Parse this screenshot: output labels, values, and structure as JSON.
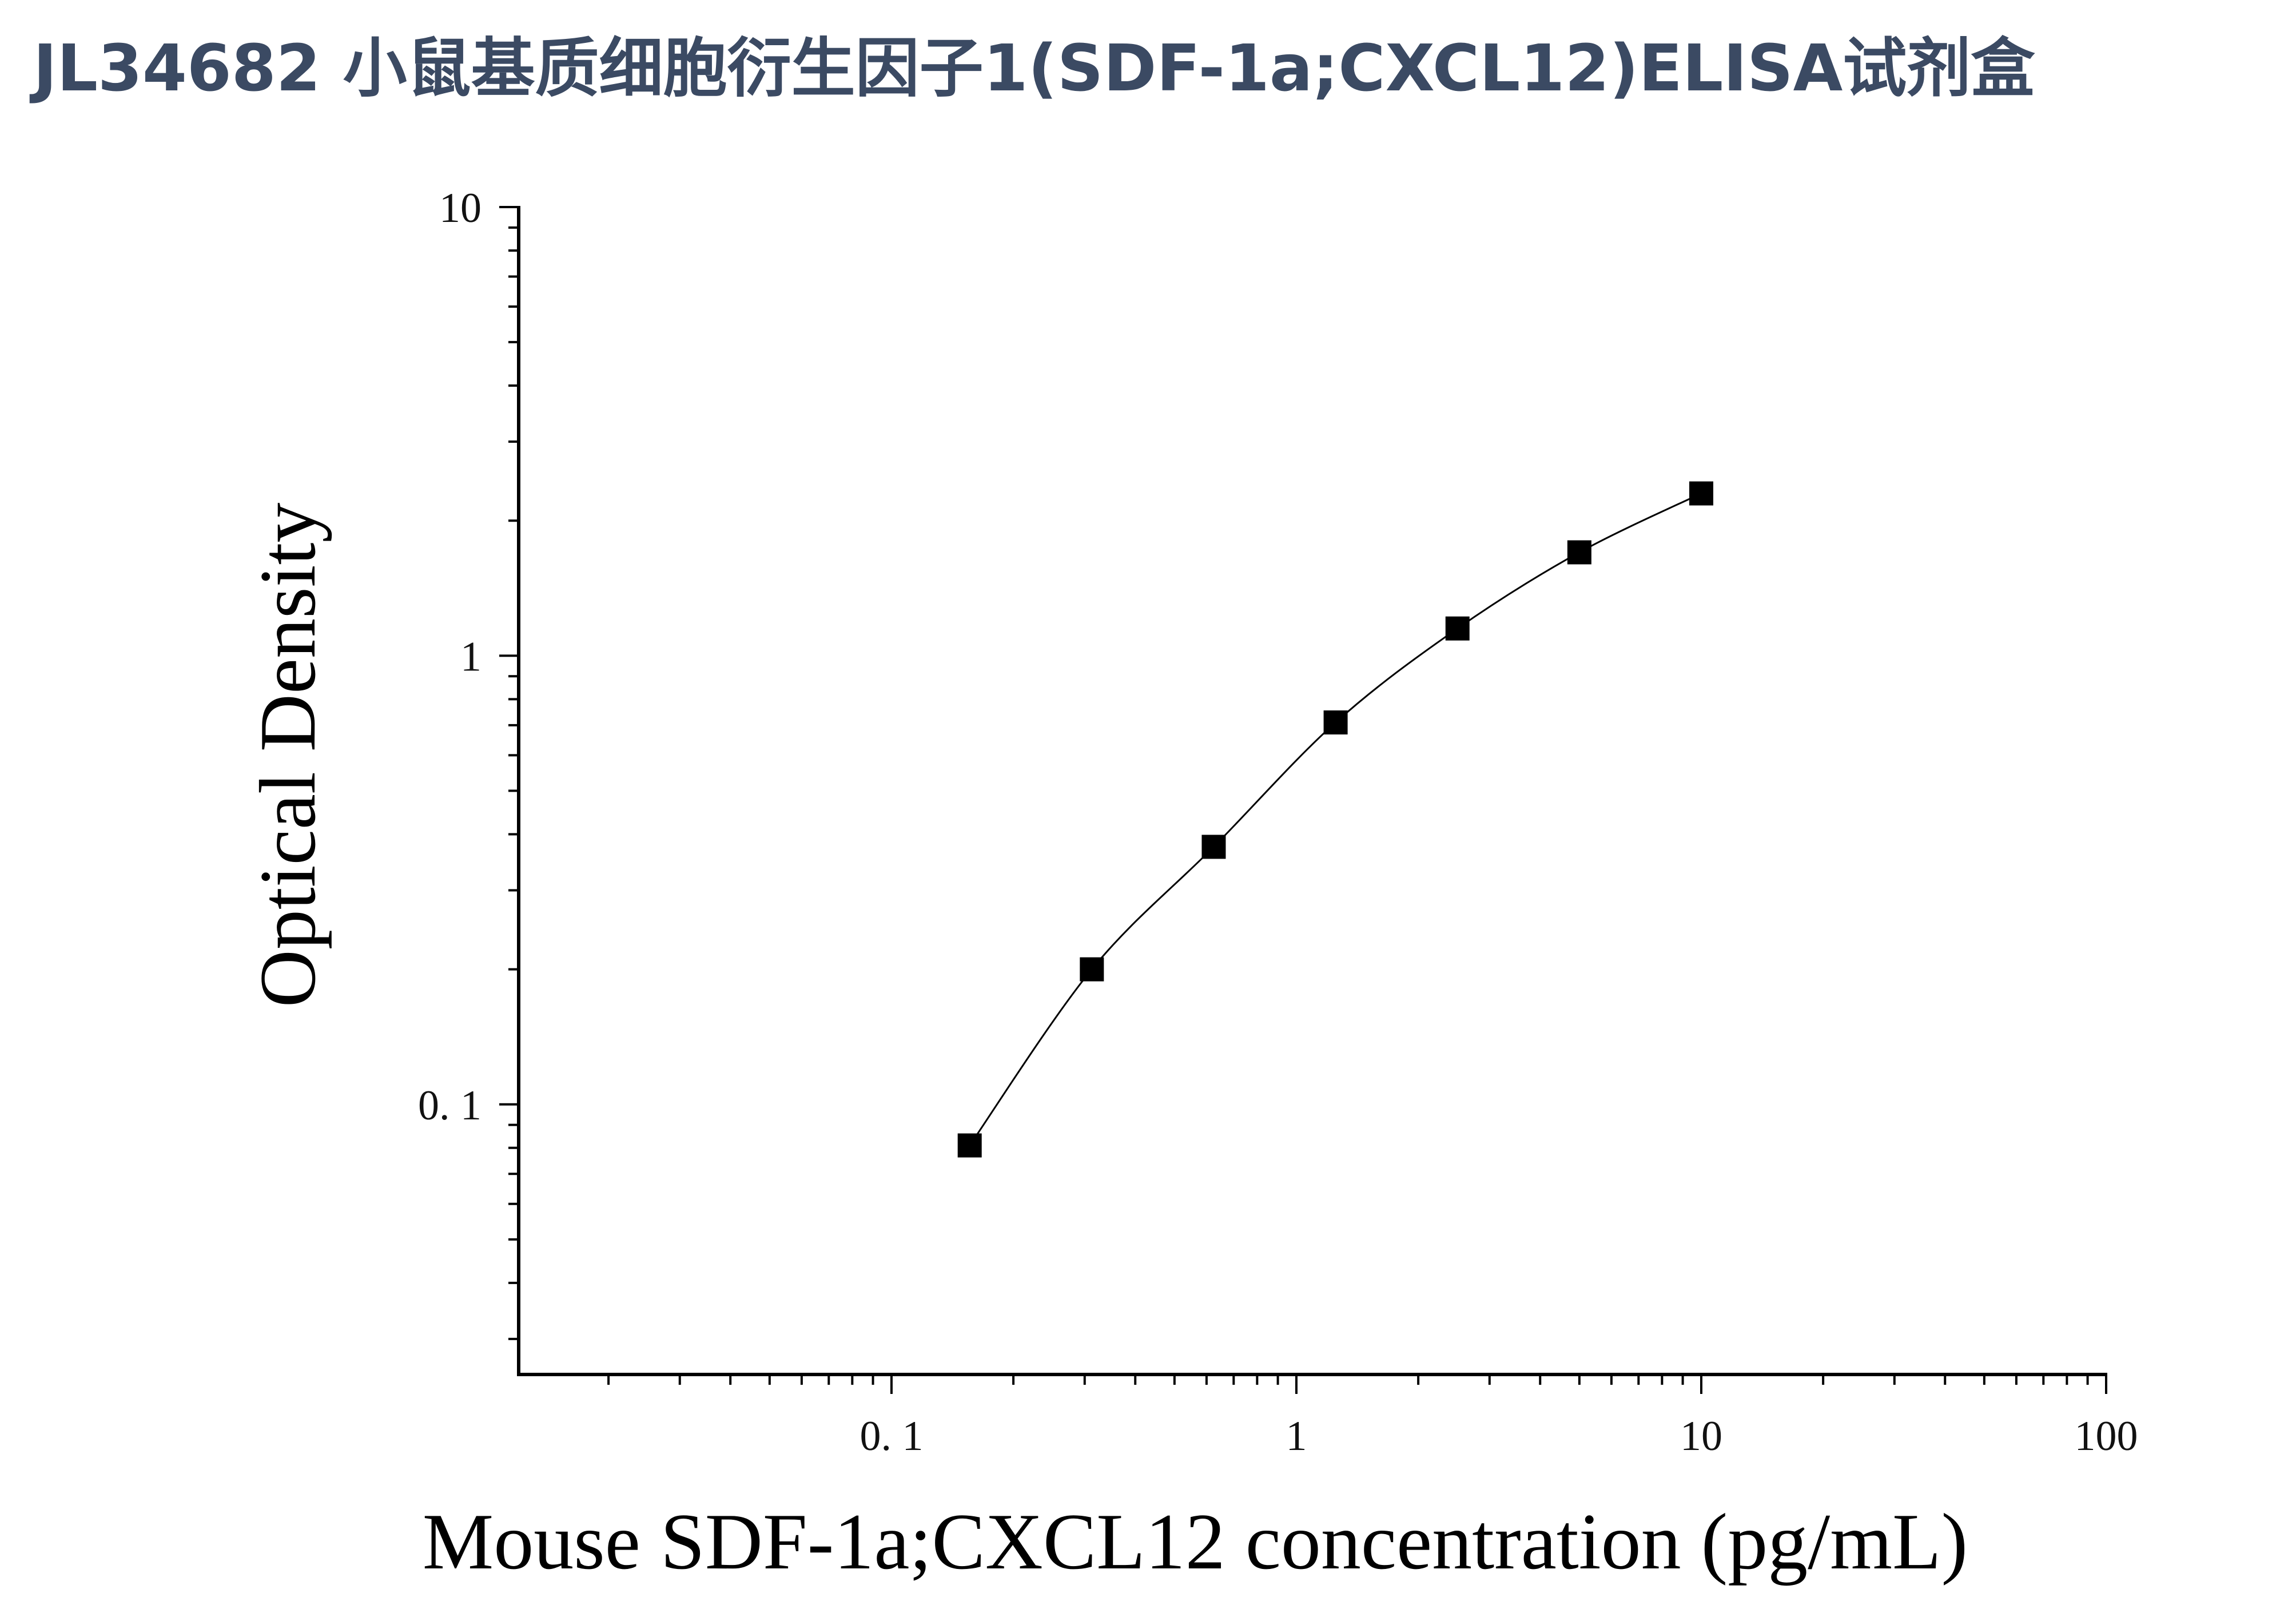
{
  "chart_data": {
    "type": "scatter",
    "title": "JL34682 小鼠基质细胞衍生因子1(SDF-1a;CXCL12)ELISA试剂盒",
    "xlabel": "Mouse SDF-1a;CXCL12 concentration (pg/mL)",
    "ylabel": "Optical Density",
    "x_scale": "log",
    "y_scale": "log",
    "xlim": [
      0.012,
      100
    ],
    "ylim": [
      0.025,
      10
    ],
    "x_ticks": [
      {
        "value": 0.1,
        "label": "0. 1"
      },
      {
        "value": 1,
        "label": "1"
      },
      {
        "value": 10,
        "label": "10"
      },
      {
        "value": 100,
        "label": "100"
      }
    ],
    "y_ticks": [
      {
        "value": 0.1,
        "label": "0. 1"
      },
      {
        "value": 1,
        "label": "1"
      },
      {
        "value": 10,
        "label": "10"
      }
    ],
    "grid": false,
    "fit_curve": true,
    "series": [
      {
        "x": [
          0.156,
          0.3125,
          0.625,
          1.25,
          2.5,
          5,
          10
        ],
        "y": [
          0.081,
          0.2,
          0.375,
          0.71,
          1.15,
          1.7,
          2.3
        ]
      }
    ],
    "colors": {
      "marker": "#000000",
      "curve": "#000000",
      "title": "#3b4a63"
    }
  }
}
